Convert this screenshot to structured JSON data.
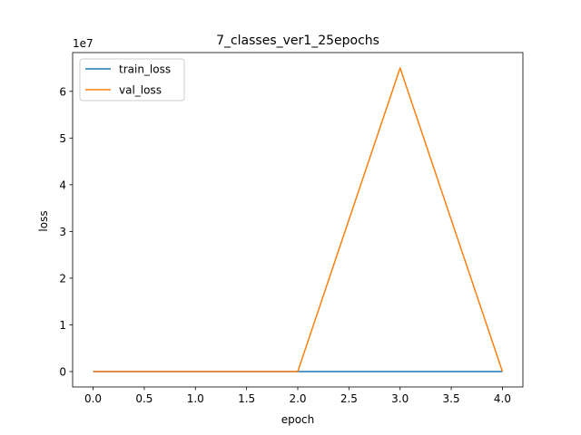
{
  "chart_data": {
    "type": "line",
    "title": "7_classes_ver1_25epochs",
    "xlabel": "epoch",
    "ylabel": "loss",
    "y_offset_label": "1e7",
    "x": [
      0,
      1,
      2,
      3,
      4
    ],
    "xlim": [
      -0.2,
      4.2
    ],
    "ylim": [
      -0.33,
      6.83
    ],
    "y_scale_note": "y values in units of 1e7",
    "xticks": [
      0.0,
      0.5,
      1.0,
      1.5,
      2.0,
      2.5,
      3.0,
      3.5,
      4.0
    ],
    "xtick_labels": [
      "0.0",
      "0.5",
      "1.0",
      "1.5",
      "2.0",
      "2.5",
      "3.0",
      "3.5",
      "4.0"
    ],
    "yticks": [
      0,
      1,
      2,
      3,
      4,
      5,
      6
    ],
    "ytick_labels": [
      "0",
      "1",
      "2",
      "3",
      "4",
      "5",
      "6"
    ],
    "series": [
      {
        "name": "train_loss",
        "color": "#1f77b4",
        "values": [
          0,
          0,
          0,
          0,
          0
        ]
      },
      {
        "name": "val_loss",
        "color": "#ff7f0e",
        "values": [
          0,
          0,
          0,
          6.5,
          0
        ]
      }
    ],
    "legend": "top-left",
    "grid": false
  }
}
